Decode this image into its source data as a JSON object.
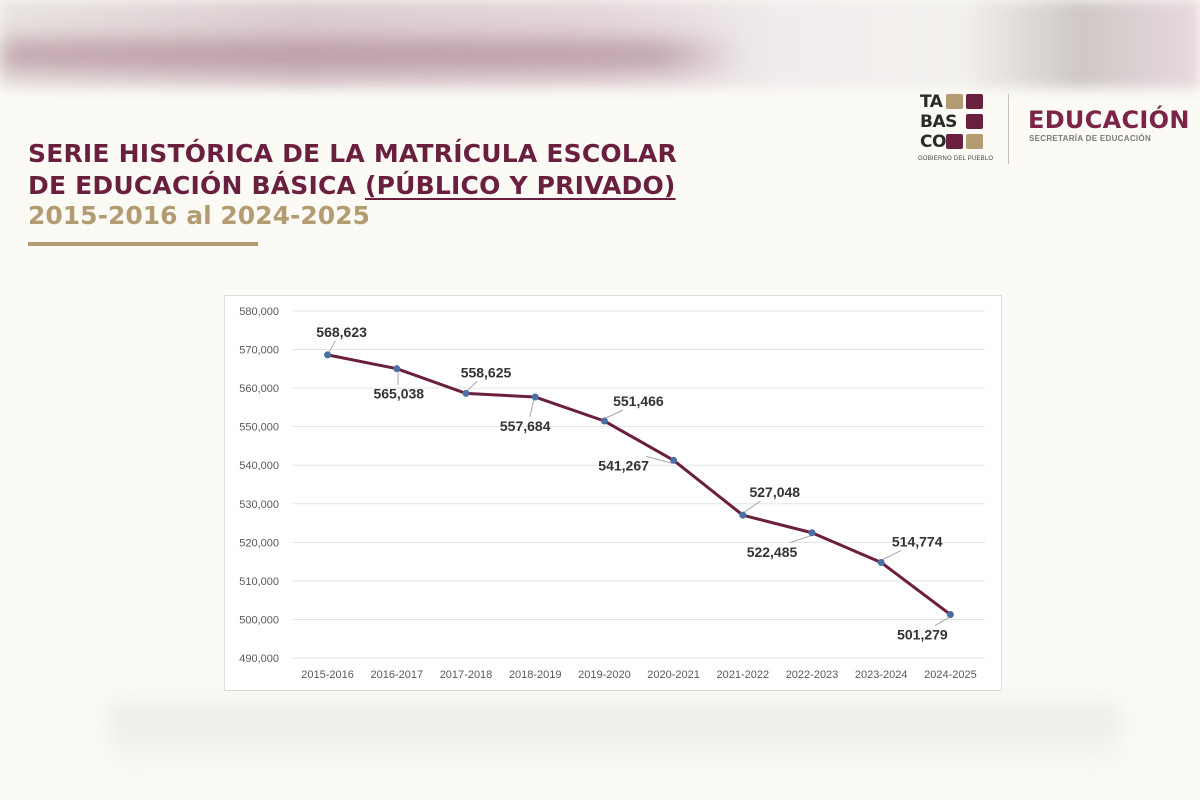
{
  "header": {
    "title_line1": "SERIE HISTÓRICA DE LA MATRÍCULA ESCOLAR",
    "title_line2_a": "DE EDUCACIÓN BÁSICA ",
    "title_line2_b": "(PÚBLICO Y PRIVADO)",
    "subtitle": "2015-2016 al 2024-2025"
  },
  "logo": {
    "row1": "TA",
    "row2": "BAS",
    "row3": "CO",
    "caption": "GOBIERNO DEL PUEBLO",
    "brand": "EDUCACIÓN",
    "brand_sub": "SECRETARÍA DE EDUCACIÓN"
  },
  "colors": {
    "title": "#6b1f3e",
    "subtitle": "#b39b72",
    "line": "#6b1f3e",
    "marker": "#4a6fa5"
  },
  "chart_data": {
    "type": "line",
    "title": "",
    "xlabel": "",
    "ylabel": "",
    "categories": [
      "2015-2016",
      "2016-2017",
      "2017-2018",
      "2018-2019",
      "2019-2020",
      "2020-2021",
      "2021-2022",
      "2022-2023",
      "2023-2024",
      "2024-2025"
    ],
    "values": [
      568623,
      565038,
      558625,
      557684,
      551466,
      541267,
      527048,
      522485,
      514774,
      501279
    ],
    "data_labels": [
      "568,623",
      "565,038",
      "558,625",
      "557,684",
      "551,466",
      "541,267",
      "527,048",
      "522,485",
      "514,774",
      "501,279"
    ],
    "ylim": [
      490000,
      580000
    ],
    "yticks": [
      490000,
      500000,
      510000,
      520000,
      530000,
      540000,
      550000,
      560000,
      570000,
      580000
    ],
    "ytick_labels": [
      "490,000",
      "500,000",
      "510,000",
      "520,000",
      "530,000",
      "540,000",
      "550,000",
      "560,000",
      "570,000",
      "580,000"
    ],
    "grid": true,
    "legend": "none"
  }
}
